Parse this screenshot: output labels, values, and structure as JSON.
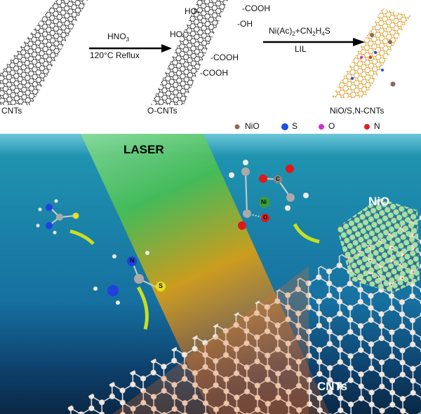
{
  "top_scheme": {
    "stage1_label": "CNTs",
    "arrow1": {
      "reagent": "HNO",
      "reagent_sub": "3",
      "condition": "120°C  Reflux"
    },
    "stage2_label": "O-CNTs",
    "functional_groups": [
      "HO-",
      "-COOH",
      "-OH",
      "HO-",
      "-COOH",
      "-COOH"
    ],
    "arrow2": {
      "reagent_parts": [
        "Ni(Ac)",
        "2",
        "+CN",
        "2",
        "H",
        "4",
        "S"
      ],
      "condition": "LIL"
    },
    "stage3_label": "NiO/S,N-CNTs"
  },
  "legend": [
    {
      "label": "NiO",
      "color": "#8a6a55"
    },
    {
      "label": "S",
      "color": "#1a4fe0"
    },
    {
      "label": "O",
      "color": "#d030d0"
    },
    {
      "label": "N",
      "color": "#e02020"
    }
  ],
  "bottom_scene": {
    "laser_label": "LASER",
    "nio_label": "NiO",
    "cnts_label": "CNTs",
    "atom_labels": {
      "n": "N",
      "s": "S",
      "c": "C",
      "ni": "Ni",
      "o": "O"
    }
  },
  "colors": {
    "bg_top": "#1e8aa8",
    "bg_bottom": "#0c2f55",
    "laser_green": "#4cc050",
    "laser_orange": "#e0801a",
    "nio_green": "#9ed89a",
    "nio_red": "#d42020"
  }
}
